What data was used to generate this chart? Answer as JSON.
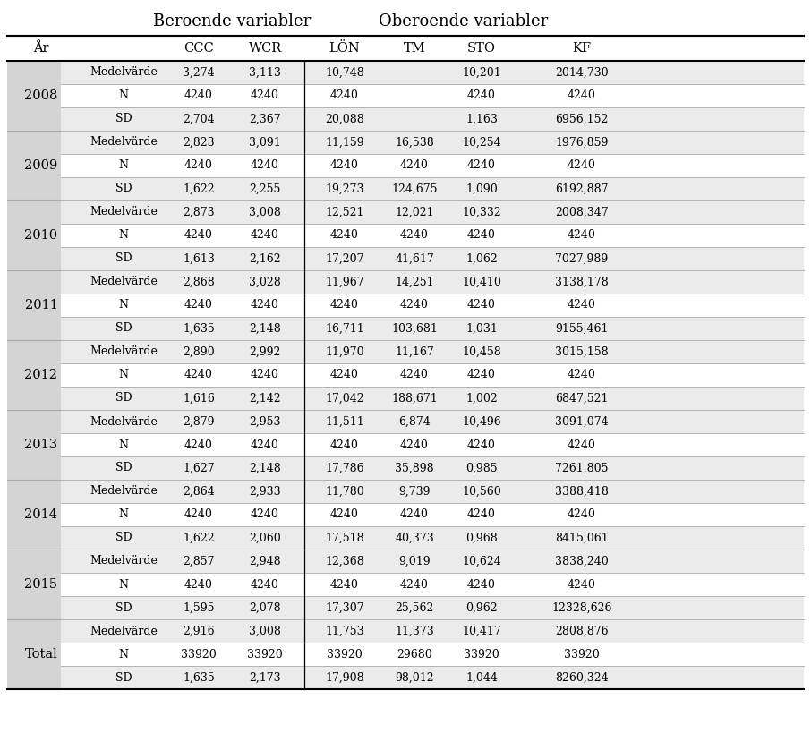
{
  "title_beroende": "Beroende variabler",
  "title_oberoende": "Oberoende variabler",
  "years": [
    "2008",
    "2009",
    "2010",
    "2011",
    "2012",
    "2013",
    "2014",
    "2015",
    "Total"
  ],
  "row_labels": [
    "Medelvärde",
    "N",
    "SD"
  ],
  "data": {
    "2008": {
      "Medelvärde": [
        "3,274",
        "3,113",
        "10,748",
        "",
        "10,201",
        "2014,730"
      ],
      "N": [
        "4240",
        "4240",
        "4240",
        "",
        "4240",
        "4240"
      ],
      "SD": [
        "2,704",
        "2,367",
        "20,088",
        "",
        "1,163",
        "6956,152"
      ]
    },
    "2009": {
      "Medelvärde": [
        "2,823",
        "3,091",
        "11,159",
        "16,538",
        "10,254",
        "1976,859"
      ],
      "N": [
        "4240",
        "4240",
        "4240",
        "4240",
        "4240",
        "4240"
      ],
      "SD": [
        "1,622",
        "2,255",
        "19,273",
        "124,675",
        "1,090",
        "6192,887"
      ]
    },
    "2010": {
      "Medelvärde": [
        "2,873",
        "3,008",
        "12,521",
        "12,021",
        "10,332",
        "2008,347"
      ],
      "N": [
        "4240",
        "4240",
        "4240",
        "4240",
        "4240",
        "4240"
      ],
      "SD": [
        "1,613",
        "2,162",
        "17,207",
        "41,617",
        "1,062",
        "7027,989"
      ]
    },
    "2011": {
      "Medelvärde": [
        "2,868",
        "3,028",
        "11,967",
        "14,251",
        "10,410",
        "3138,178"
      ],
      "N": [
        "4240",
        "4240",
        "4240",
        "4240",
        "4240",
        "4240"
      ],
      "SD": [
        "1,635",
        "2,148",
        "16,711",
        "103,681",
        "1,031",
        "9155,461"
      ]
    },
    "2012": {
      "Medelvärde": [
        "2,890",
        "2,992",
        "11,970",
        "11,167",
        "10,458",
        "3015,158"
      ],
      "N": [
        "4240",
        "4240",
        "4240",
        "4240",
        "4240",
        "4240"
      ],
      "SD": [
        "1,616",
        "2,142",
        "17,042",
        "188,671",
        "1,002",
        "6847,521"
      ]
    },
    "2013": {
      "Medelvärde": [
        "2,879",
        "2,953",
        "11,511",
        "6,874",
        "10,496",
        "3091,074"
      ],
      "N": [
        "4240",
        "4240",
        "4240",
        "4240",
        "4240",
        "4240"
      ],
      "SD": [
        "1,627",
        "2,148",
        "17,786",
        "35,898",
        "0,985",
        "7261,805"
      ]
    },
    "2014": {
      "Medelvärde": [
        "2,864",
        "2,933",
        "11,780",
        "9,739",
        "10,560",
        "3388,418"
      ],
      "N": [
        "4240",
        "4240",
        "4240",
        "4240",
        "4240",
        "4240"
      ],
      "SD": [
        "1,622",
        "2,060",
        "17,518",
        "40,373",
        "0,968",
        "8415,061"
      ]
    },
    "2015": {
      "Medelvärde": [
        "2,857",
        "2,948",
        "12,368",
        "9,019",
        "10,624",
        "3838,240"
      ],
      "N": [
        "4240",
        "4240",
        "4240",
        "4240",
        "4240",
        "4240"
      ],
      "SD": [
        "1,595",
        "2,078",
        "17,307",
        "25,562",
        "0,962",
        "12328,626"
      ]
    },
    "Total": {
      "Medelvärde": [
        "2,916",
        "3,008",
        "11,753",
        "11,373",
        "10,417",
        "2808,876"
      ],
      "N": [
        "33920",
        "33920",
        "33920",
        "29680",
        "33920",
        "33920"
      ],
      "SD": [
        "1,635",
        "2,173",
        "17,908",
        "98,012",
        "1,044",
        "8260,324"
      ]
    }
  },
  "bg_year": "#d4d4d4",
  "bg_light": "#ebebeb",
  "bg_white": "#ffffff",
  "line_color_heavy": "#000000",
  "line_color_light": "#aaaaaa",
  "title_fontsize": 13,
  "header_fontsize": 10.5,
  "cell_fontsize": 9,
  "year_fontsize": 10.5
}
